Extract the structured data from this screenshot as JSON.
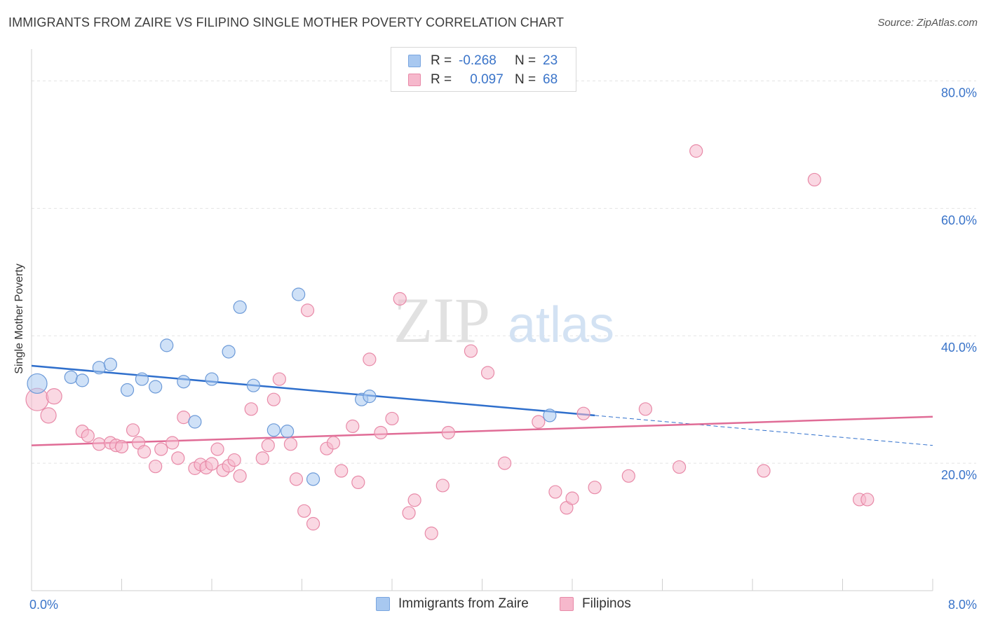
{
  "title": "IMMIGRANTS FROM ZAIRE VS FILIPINO SINGLE MOTHER POVERTY CORRELATION CHART",
  "source": "Source: ZipAtlas.com",
  "watermark": {
    "zip": "ZIP",
    "atlas": "atlas"
  },
  "legend": {
    "rows": [
      {
        "r_label": "R =",
        "r_value": "-0.268",
        "n_label": "N =",
        "n_value": "23",
        "color": "#a8c8f0",
        "border": "#7aa6e0"
      },
      {
        "r_label": "R =",
        "r_value": "0.097",
        "n_label": "N =",
        "n_value": "68",
        "color": "#f6b8cc",
        "border": "#e88aa8"
      }
    ]
  },
  "chart_data": {
    "type": "scatter",
    "xlabel": "",
    "ylabel": "Single Mother Poverty",
    "xlim": [
      0,
      8
    ],
    "ylim": [
      0,
      85
    ],
    "x_tick_labels": [
      {
        "value": 0,
        "label": "0.0%"
      },
      {
        "value": 8,
        "label": "8.0%"
      }
    ],
    "y_tick_labels": [
      {
        "value": 20,
        "label": "20.0%"
      },
      {
        "value": 40,
        "label": "40.0%"
      },
      {
        "value": 60,
        "label": "60.0%"
      },
      {
        "value": 80,
        "label": "80.0%"
      }
    ],
    "grid": "horizontal-dashed",
    "series": [
      {
        "name": "Immigrants from Zaire",
        "color": "#a8c8f0",
        "stroke": "#6c9ad8",
        "trend_color": "#2f6fcc",
        "trend": {
          "x0": 0,
          "y0": 35.3,
          "x1": 5.0,
          "y1": 27.5,
          "dash_to_x": 8.0,
          "dash_to_y": 22.8
        },
        "points": [
          [
            0.05,
            32.5,
            14
          ],
          [
            0.35,
            33.5,
            9
          ],
          [
            0.45,
            33.0,
            9
          ],
          [
            0.6,
            35.0,
            9
          ],
          [
            0.7,
            35.5,
            9
          ],
          [
            0.85,
            31.5,
            9
          ],
          [
            0.98,
            33.2,
            9
          ],
          [
            1.1,
            32.0,
            9
          ],
          [
            1.2,
            38.5,
            9
          ],
          [
            1.35,
            32.8,
            9
          ],
          [
            1.45,
            26.5,
            9
          ],
          [
            1.6,
            33.2,
            9
          ],
          [
            1.75,
            37.5,
            9
          ],
          [
            1.85,
            44.5,
            9
          ],
          [
            1.97,
            32.2,
            9
          ],
          [
            2.15,
            25.2,
            9
          ],
          [
            2.27,
            25.0,
            9
          ],
          [
            2.37,
            46.5,
            9
          ],
          [
            2.5,
            17.5,
            9
          ],
          [
            2.93,
            30.0,
            9
          ],
          [
            3.0,
            30.5,
            9
          ],
          [
            4.6,
            27.5,
            9
          ]
        ]
      },
      {
        "name": "Filipinos",
        "color": "#f6b8cc",
        "stroke": "#e88aa8",
        "trend_color": "#e06c96",
        "trend": {
          "x0": 0,
          "y0": 22.8,
          "x1": 8.0,
          "y1": 27.3
        },
        "points": [
          [
            0.05,
            30.0,
            16
          ],
          [
            0.2,
            30.5,
            11
          ],
          [
            0.15,
            27.5,
            11
          ],
          [
            0.45,
            25.0,
            9
          ],
          [
            0.5,
            24.3,
            9
          ],
          [
            0.6,
            23.0,
            9
          ],
          [
            0.7,
            23.2,
            9
          ],
          [
            0.75,
            22.8,
            9
          ],
          [
            0.8,
            22.6,
            9
          ],
          [
            0.9,
            25.2,
            9
          ],
          [
            0.95,
            23.2,
            9
          ],
          [
            1.0,
            21.8,
            9
          ],
          [
            1.1,
            19.5,
            9
          ],
          [
            1.15,
            22.2,
            9
          ],
          [
            1.25,
            23.2,
            9
          ],
          [
            1.3,
            20.8,
            9
          ],
          [
            1.35,
            27.2,
            9
          ],
          [
            1.45,
            19.2,
            9
          ],
          [
            1.5,
            19.8,
            9
          ],
          [
            1.55,
            19.3,
            9
          ],
          [
            1.6,
            19.9,
            9
          ],
          [
            1.65,
            22.2,
            9
          ],
          [
            1.7,
            18.9,
            9
          ],
          [
            1.75,
            19.6,
            9
          ],
          [
            1.8,
            20.5,
            9
          ],
          [
            1.85,
            18.0,
            9
          ],
          [
            1.95,
            28.5,
            9
          ],
          [
            2.05,
            20.8,
            9
          ],
          [
            2.1,
            22.8,
            9
          ],
          [
            2.15,
            30.0,
            9
          ],
          [
            2.2,
            33.2,
            9
          ],
          [
            2.3,
            23.0,
            9
          ],
          [
            2.35,
            17.5,
            9
          ],
          [
            2.42,
            12.5,
            9
          ],
          [
            2.45,
            44.0,
            9
          ],
          [
            2.5,
            10.5,
            9
          ],
          [
            2.62,
            22.3,
            9
          ],
          [
            2.68,
            23.2,
            9
          ],
          [
            2.75,
            18.8,
            9
          ],
          [
            2.85,
            25.8,
            9
          ],
          [
            2.9,
            17.0,
            9
          ],
          [
            3.0,
            36.3,
            9
          ],
          [
            3.1,
            24.8,
            9
          ],
          [
            3.2,
            27.0,
            9
          ],
          [
            3.27,
            45.8,
            9
          ],
          [
            3.35,
            12.2,
            9
          ],
          [
            3.4,
            14.2,
            9
          ],
          [
            3.55,
            9.0,
            9
          ],
          [
            3.65,
            16.5,
            9
          ],
          [
            3.7,
            24.8,
            9
          ],
          [
            3.9,
            37.6,
            9
          ],
          [
            4.05,
            34.2,
            9
          ],
          [
            4.2,
            20.0,
            9
          ],
          [
            4.5,
            26.5,
            9
          ],
          [
            4.65,
            15.5,
            9
          ],
          [
            4.75,
            13.0,
            9
          ],
          [
            4.8,
            14.5,
            9
          ],
          [
            4.9,
            27.8,
            9
          ],
          [
            5.0,
            16.2,
            9
          ],
          [
            5.3,
            18.0,
            9
          ],
          [
            5.45,
            28.5,
            9
          ],
          [
            5.75,
            19.4,
            9
          ],
          [
            5.9,
            69.0,
            9
          ],
          [
            6.5,
            18.8,
            9
          ],
          [
            6.95,
            64.5,
            9
          ],
          [
            7.35,
            14.3,
            9
          ],
          [
            7.42,
            14.3,
            9
          ]
        ]
      }
    ]
  },
  "bottom_legend": [
    {
      "label": "Immigrants from Zaire",
      "color": "#a8c8f0",
      "border": "#7aa6e0"
    },
    {
      "label": "Filipinos",
      "color": "#f6b8cc",
      "border": "#e88aa8"
    }
  ]
}
